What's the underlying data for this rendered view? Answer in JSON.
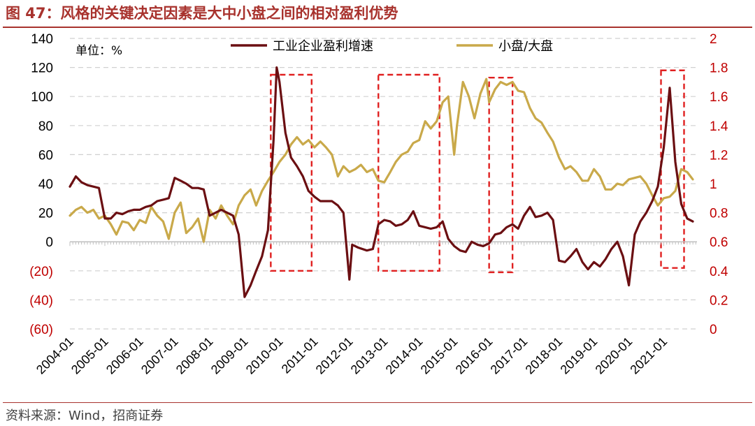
{
  "figure": {
    "title": "图 47：风格的关键决定因素是大中小盘之间的相对盈利优势",
    "source": "资料来源：Wind，招商证券"
  },
  "colors": {
    "brand": "#a8322d",
    "industrial_profit": "#6b0f12",
    "small_large": "#c9a94a",
    "highlight_box": "#e02020",
    "negative_tick": "#c00000",
    "right_axis": "#c00000",
    "grid": "#d0d0d0"
  },
  "chart_data": {
    "type": "line",
    "unit_label": "单位：%",
    "x_labels": [
      "2004-01",
      "2005-01",
      "2006-01",
      "2007-01",
      "2008-01",
      "2009-01",
      "2010-01",
      "2011-01",
      "2012-01",
      "2013-01",
      "2014-01",
      "2015-01",
      "2016-01",
      "2017-01",
      "2018-01",
      "2019-01",
      "2020-01",
      "2021-01"
    ],
    "x_range": [
      2004.0,
      2021.95
    ],
    "y_left": {
      "ylim": [
        -60,
        140
      ],
      "ticks": [
        140,
        120,
        100,
        80,
        60,
        40,
        20,
        0,
        -20,
        -40,
        -60
      ],
      "tick_labels": [
        "140",
        "120",
        "100",
        "80",
        "60",
        "40",
        "20",
        "0",
        "(20)",
        "(40)",
        "(60)"
      ]
    },
    "y_right": {
      "ylim": [
        0,
        2
      ],
      "ticks": [
        2,
        1.8,
        1.6,
        1.4,
        1.2,
        1,
        0.8,
        0.6,
        0.4,
        0.2,
        0
      ],
      "tick_labels": [
        "2",
        "1.8",
        "1.6",
        "1.4",
        "1.2",
        "1",
        "0.8",
        "0.6",
        "0.4",
        "0.2",
        "0"
      ]
    },
    "grid": true,
    "legend_position": "top",
    "series": [
      {
        "name": "工业企业盈利增速",
        "axis": "left",
        "color": "#6b0f12",
        "points": [
          [
            2004.0,
            38
          ],
          [
            2004.17,
            45
          ],
          [
            2004.33,
            41
          ],
          [
            2004.5,
            39
          ],
          [
            2004.67,
            38
          ],
          [
            2004.83,
            37
          ],
          [
            2005.0,
            16
          ],
          [
            2005.17,
            16
          ],
          [
            2005.33,
            20
          ],
          [
            2005.5,
            19
          ],
          [
            2005.67,
            21
          ],
          [
            2005.83,
            22
          ],
          [
            2006.0,
            22
          ],
          [
            2006.17,
            24
          ],
          [
            2006.33,
            25
          ],
          [
            2006.5,
            28
          ],
          [
            2006.67,
            29
          ],
          [
            2006.83,
            30
          ],
          [
            2007.0,
            44
          ],
          [
            2007.17,
            42
          ],
          [
            2007.33,
            40
          ],
          [
            2007.5,
            37
          ],
          [
            2007.67,
            37
          ],
          [
            2007.83,
            36
          ],
          [
            2008.0,
            18
          ],
          [
            2008.17,
            20
          ],
          [
            2008.33,
            22
          ],
          [
            2008.5,
            20
          ],
          [
            2008.67,
            18
          ],
          [
            2008.83,
            5
          ],
          [
            2009.0,
            -38
          ],
          [
            2009.17,
            -30
          ],
          [
            2009.33,
            -20
          ],
          [
            2009.5,
            -10
          ],
          [
            2009.67,
            8
          ],
          [
            2009.83,
            70
          ],
          [
            2009.92,
            120
          ],
          [
            2010.0,
            110
          ],
          [
            2010.17,
            75
          ],
          [
            2010.33,
            58
          ],
          [
            2010.5,
            52
          ],
          [
            2010.67,
            45
          ],
          [
            2010.83,
            35
          ],
          [
            2011.0,
            31
          ],
          [
            2011.17,
            28
          ],
          [
            2011.33,
            28
          ],
          [
            2011.5,
            28
          ],
          [
            2011.67,
            25
          ],
          [
            2011.83,
            20
          ],
          [
            2012.0,
            -26
          ],
          [
            2012.08,
            -2
          ],
          [
            2012.25,
            -4
          ],
          [
            2012.5,
            -6
          ],
          [
            2012.67,
            -5
          ],
          [
            2012.83,
            12
          ],
          [
            2013.0,
            15
          ],
          [
            2013.17,
            14
          ],
          [
            2013.33,
            11
          ],
          [
            2013.5,
            12
          ],
          [
            2013.67,
            15
          ],
          [
            2013.83,
            21
          ],
          [
            2014.0,
            11
          ],
          [
            2014.17,
            10
          ],
          [
            2014.33,
            9
          ],
          [
            2014.5,
            10
          ],
          [
            2014.67,
            14
          ],
          [
            2014.83,
            2
          ],
          [
            2015.0,
            -3
          ],
          [
            2015.17,
            -6
          ],
          [
            2015.33,
            -7
          ],
          [
            2015.5,
            0
          ],
          [
            2015.67,
            -2
          ],
          [
            2015.83,
            -3
          ],
          [
            2016.0,
            -1
          ],
          [
            2016.17,
            5
          ],
          [
            2016.33,
            6
          ],
          [
            2016.5,
            10
          ],
          [
            2016.67,
            12
          ],
          [
            2016.83,
            9
          ],
          [
            2017.0,
            18
          ],
          [
            2017.17,
            24
          ],
          [
            2017.33,
            17
          ],
          [
            2017.5,
            18
          ],
          [
            2017.67,
            20
          ],
          [
            2017.83,
            15
          ],
          [
            2018.0,
            -13
          ],
          [
            2018.17,
            -14
          ],
          [
            2018.33,
            -10
          ],
          [
            2018.5,
            -5
          ],
          [
            2018.67,
            -14
          ],
          [
            2018.83,
            -19
          ],
          [
            2019.0,
            -14
          ],
          [
            2019.17,
            -17
          ],
          [
            2019.33,
            -12
          ],
          [
            2019.5,
            -5
          ],
          [
            2019.67,
            0
          ],
          [
            2019.83,
            -10
          ],
          [
            2020.0,
            -30
          ],
          [
            2020.17,
            5
          ],
          [
            2020.33,
            14
          ],
          [
            2020.5,
            20
          ],
          [
            2020.67,
            28
          ],
          [
            2020.83,
            38
          ],
          [
            2021.0,
            65
          ],
          [
            2021.17,
            106
          ],
          [
            2021.33,
            55
          ],
          [
            2021.5,
            26
          ],
          [
            2021.67,
            16
          ],
          [
            2021.83,
            14
          ]
        ]
      },
      {
        "name": "小盘/大盘",
        "axis": "right",
        "color": "#c9a94a",
        "points": [
          [
            2004.0,
            0.78
          ],
          [
            2004.17,
            0.82
          ],
          [
            2004.33,
            0.84
          ],
          [
            2004.5,
            0.8
          ],
          [
            2004.67,
            0.82
          ],
          [
            2004.83,
            0.76
          ],
          [
            2005.0,
            0.78
          ],
          [
            2005.17,
            0.72
          ],
          [
            2005.33,
            0.65
          ],
          [
            2005.5,
            0.74
          ],
          [
            2005.67,
            0.73
          ],
          [
            2005.83,
            0.68
          ],
          [
            2006.0,
            0.75
          ],
          [
            2006.17,
            0.73
          ],
          [
            2006.33,
            0.84
          ],
          [
            2006.5,
            0.78
          ],
          [
            2006.67,
            0.74
          ],
          [
            2006.83,
            0.62
          ],
          [
            2007.0,
            0.8
          ],
          [
            2007.17,
            0.87
          ],
          [
            2007.33,
            0.66
          ],
          [
            2007.5,
            0.7
          ],
          [
            2007.67,
            0.76
          ],
          [
            2007.83,
            0.6
          ],
          [
            2008.0,
            0.82
          ],
          [
            2008.17,
            0.76
          ],
          [
            2008.33,
            0.85
          ],
          [
            2008.5,
            0.78
          ],
          [
            2008.67,
            0.72
          ],
          [
            2008.83,
            0.85
          ],
          [
            2009.0,
            0.92
          ],
          [
            2009.17,
            0.96
          ],
          [
            2009.33,
            0.85
          ],
          [
            2009.5,
            0.95
          ],
          [
            2009.67,
            1.02
          ],
          [
            2009.83,
            1.08
          ],
          [
            2010.0,
            1.15
          ],
          [
            2010.17,
            1.2
          ],
          [
            2010.33,
            1.27
          ],
          [
            2010.5,
            1.32
          ],
          [
            2010.67,
            1.27
          ],
          [
            2010.83,
            1.3
          ],
          [
            2011.0,
            1.25
          ],
          [
            2011.17,
            1.29
          ],
          [
            2011.33,
            1.25
          ],
          [
            2011.5,
            1.2
          ],
          [
            2011.67,
            1.05
          ],
          [
            2011.83,
            1.12
          ],
          [
            2012.0,
            1.08
          ],
          [
            2012.17,
            1.1
          ],
          [
            2012.33,
            1.13
          ],
          [
            2012.5,
            1.08
          ],
          [
            2012.67,
            1.1
          ],
          [
            2012.83,
            1.02
          ],
          [
            2013.0,
            1.01
          ],
          [
            2013.17,
            1.08
          ],
          [
            2013.33,
            1.15
          ],
          [
            2013.5,
            1.2
          ],
          [
            2013.67,
            1.22
          ],
          [
            2013.83,
            1.28
          ],
          [
            2014.0,
            1.3
          ],
          [
            2014.17,
            1.43
          ],
          [
            2014.33,
            1.38
          ],
          [
            2014.5,
            1.43
          ],
          [
            2014.67,
            1.56
          ],
          [
            2014.83,
            1.6
          ],
          [
            2015.0,
            1.2
          ],
          [
            2015.08,
            1.4
          ],
          [
            2015.25,
            1.7
          ],
          [
            2015.42,
            1.6
          ],
          [
            2015.58,
            1.45
          ],
          [
            2015.75,
            1.62
          ],
          [
            2015.92,
            1.72
          ],
          [
            2016.0,
            1.56
          ],
          [
            2016.17,
            1.65
          ],
          [
            2016.33,
            1.7
          ],
          [
            2016.5,
            1.68
          ],
          [
            2016.67,
            1.7
          ],
          [
            2016.83,
            1.64
          ],
          [
            2017.0,
            1.63
          ],
          [
            2017.17,
            1.52
          ],
          [
            2017.33,
            1.45
          ],
          [
            2017.5,
            1.42
          ],
          [
            2017.67,
            1.35
          ],
          [
            2017.83,
            1.29
          ],
          [
            2018.0,
            1.18
          ],
          [
            2018.17,
            1.1
          ],
          [
            2018.33,
            1.12
          ],
          [
            2018.5,
            1.08
          ],
          [
            2018.67,
            1.02
          ],
          [
            2018.83,
            1.02
          ],
          [
            2019.0,
            1.1
          ],
          [
            2019.17,
            1.05
          ],
          [
            2019.33,
            0.96
          ],
          [
            2019.5,
            0.96
          ],
          [
            2019.67,
            1.0
          ],
          [
            2019.83,
            0.99
          ],
          [
            2020.0,
            1.03
          ],
          [
            2020.17,
            1.04
          ],
          [
            2020.33,
            1.05
          ],
          [
            2020.5,
            1.0
          ],
          [
            2020.67,
            0.92
          ],
          [
            2020.83,
            0.85
          ],
          [
            2021.0,
            0.9
          ],
          [
            2021.17,
            0.91
          ],
          [
            2021.33,
            0.95
          ],
          [
            2021.5,
            1.1
          ],
          [
            2021.67,
            1.08
          ],
          [
            2021.83,
            1.03
          ]
        ]
      }
    ],
    "highlight_periods": [
      {
        "x0": 2009.75,
        "x1": 2010.92,
        "y_top": 115,
        "y_bottom": -20
      },
      {
        "x0": 2012.83,
        "x1": 2014.58,
        "y_top": 115,
        "y_bottom": -20
      },
      {
        "x0": 2016.0,
        "x1": 2016.67,
        "y_top": 113,
        "y_bottom": -21
      },
      {
        "x0": 2020.92,
        "x1": 2021.58,
        "y_top": 118,
        "y_bottom": -18
      }
    ]
  }
}
